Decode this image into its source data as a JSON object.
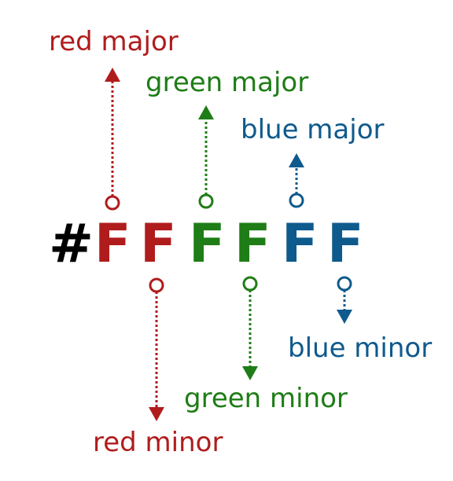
{
  "hex_code": {
    "hash": "#",
    "digits": [
      "F",
      "F",
      "F",
      "F",
      "F",
      "F"
    ]
  },
  "labels": {
    "red_major": "red major",
    "green_major": "green major",
    "blue_major": "blue major",
    "red_minor": "red minor",
    "green_minor": "green minor",
    "blue_minor": "blue minor"
  },
  "colors": {
    "red": "#b01c1c",
    "green": "#1e7d16",
    "blue": "#0e5a8c",
    "hash": "#000000"
  }
}
